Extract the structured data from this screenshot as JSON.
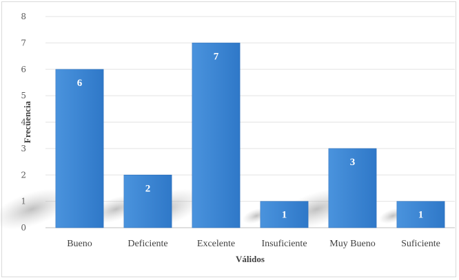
{
  "chart_data": {
    "type": "bar",
    "title": "",
    "xlabel": "Válidos",
    "ylabel": "Frecuencia",
    "categories": [
      "Bueno",
      "Deficiente",
      "Excelente",
      "Insuficiente",
      "Muy Bueno",
      "Suficiente"
    ],
    "values": [
      6,
      2,
      7,
      1,
      3,
      1
    ],
    "ylim": [
      0,
      8
    ],
    "yticks": [
      0,
      1,
      2,
      3,
      4,
      5,
      6,
      7,
      8
    ],
    "grid": true,
    "legend": "none",
    "data_labels": true,
    "bar_color": "#3a86d6",
    "bar_color_dark": "#2f6fb8",
    "grid_color": "#e3e3e3"
  }
}
